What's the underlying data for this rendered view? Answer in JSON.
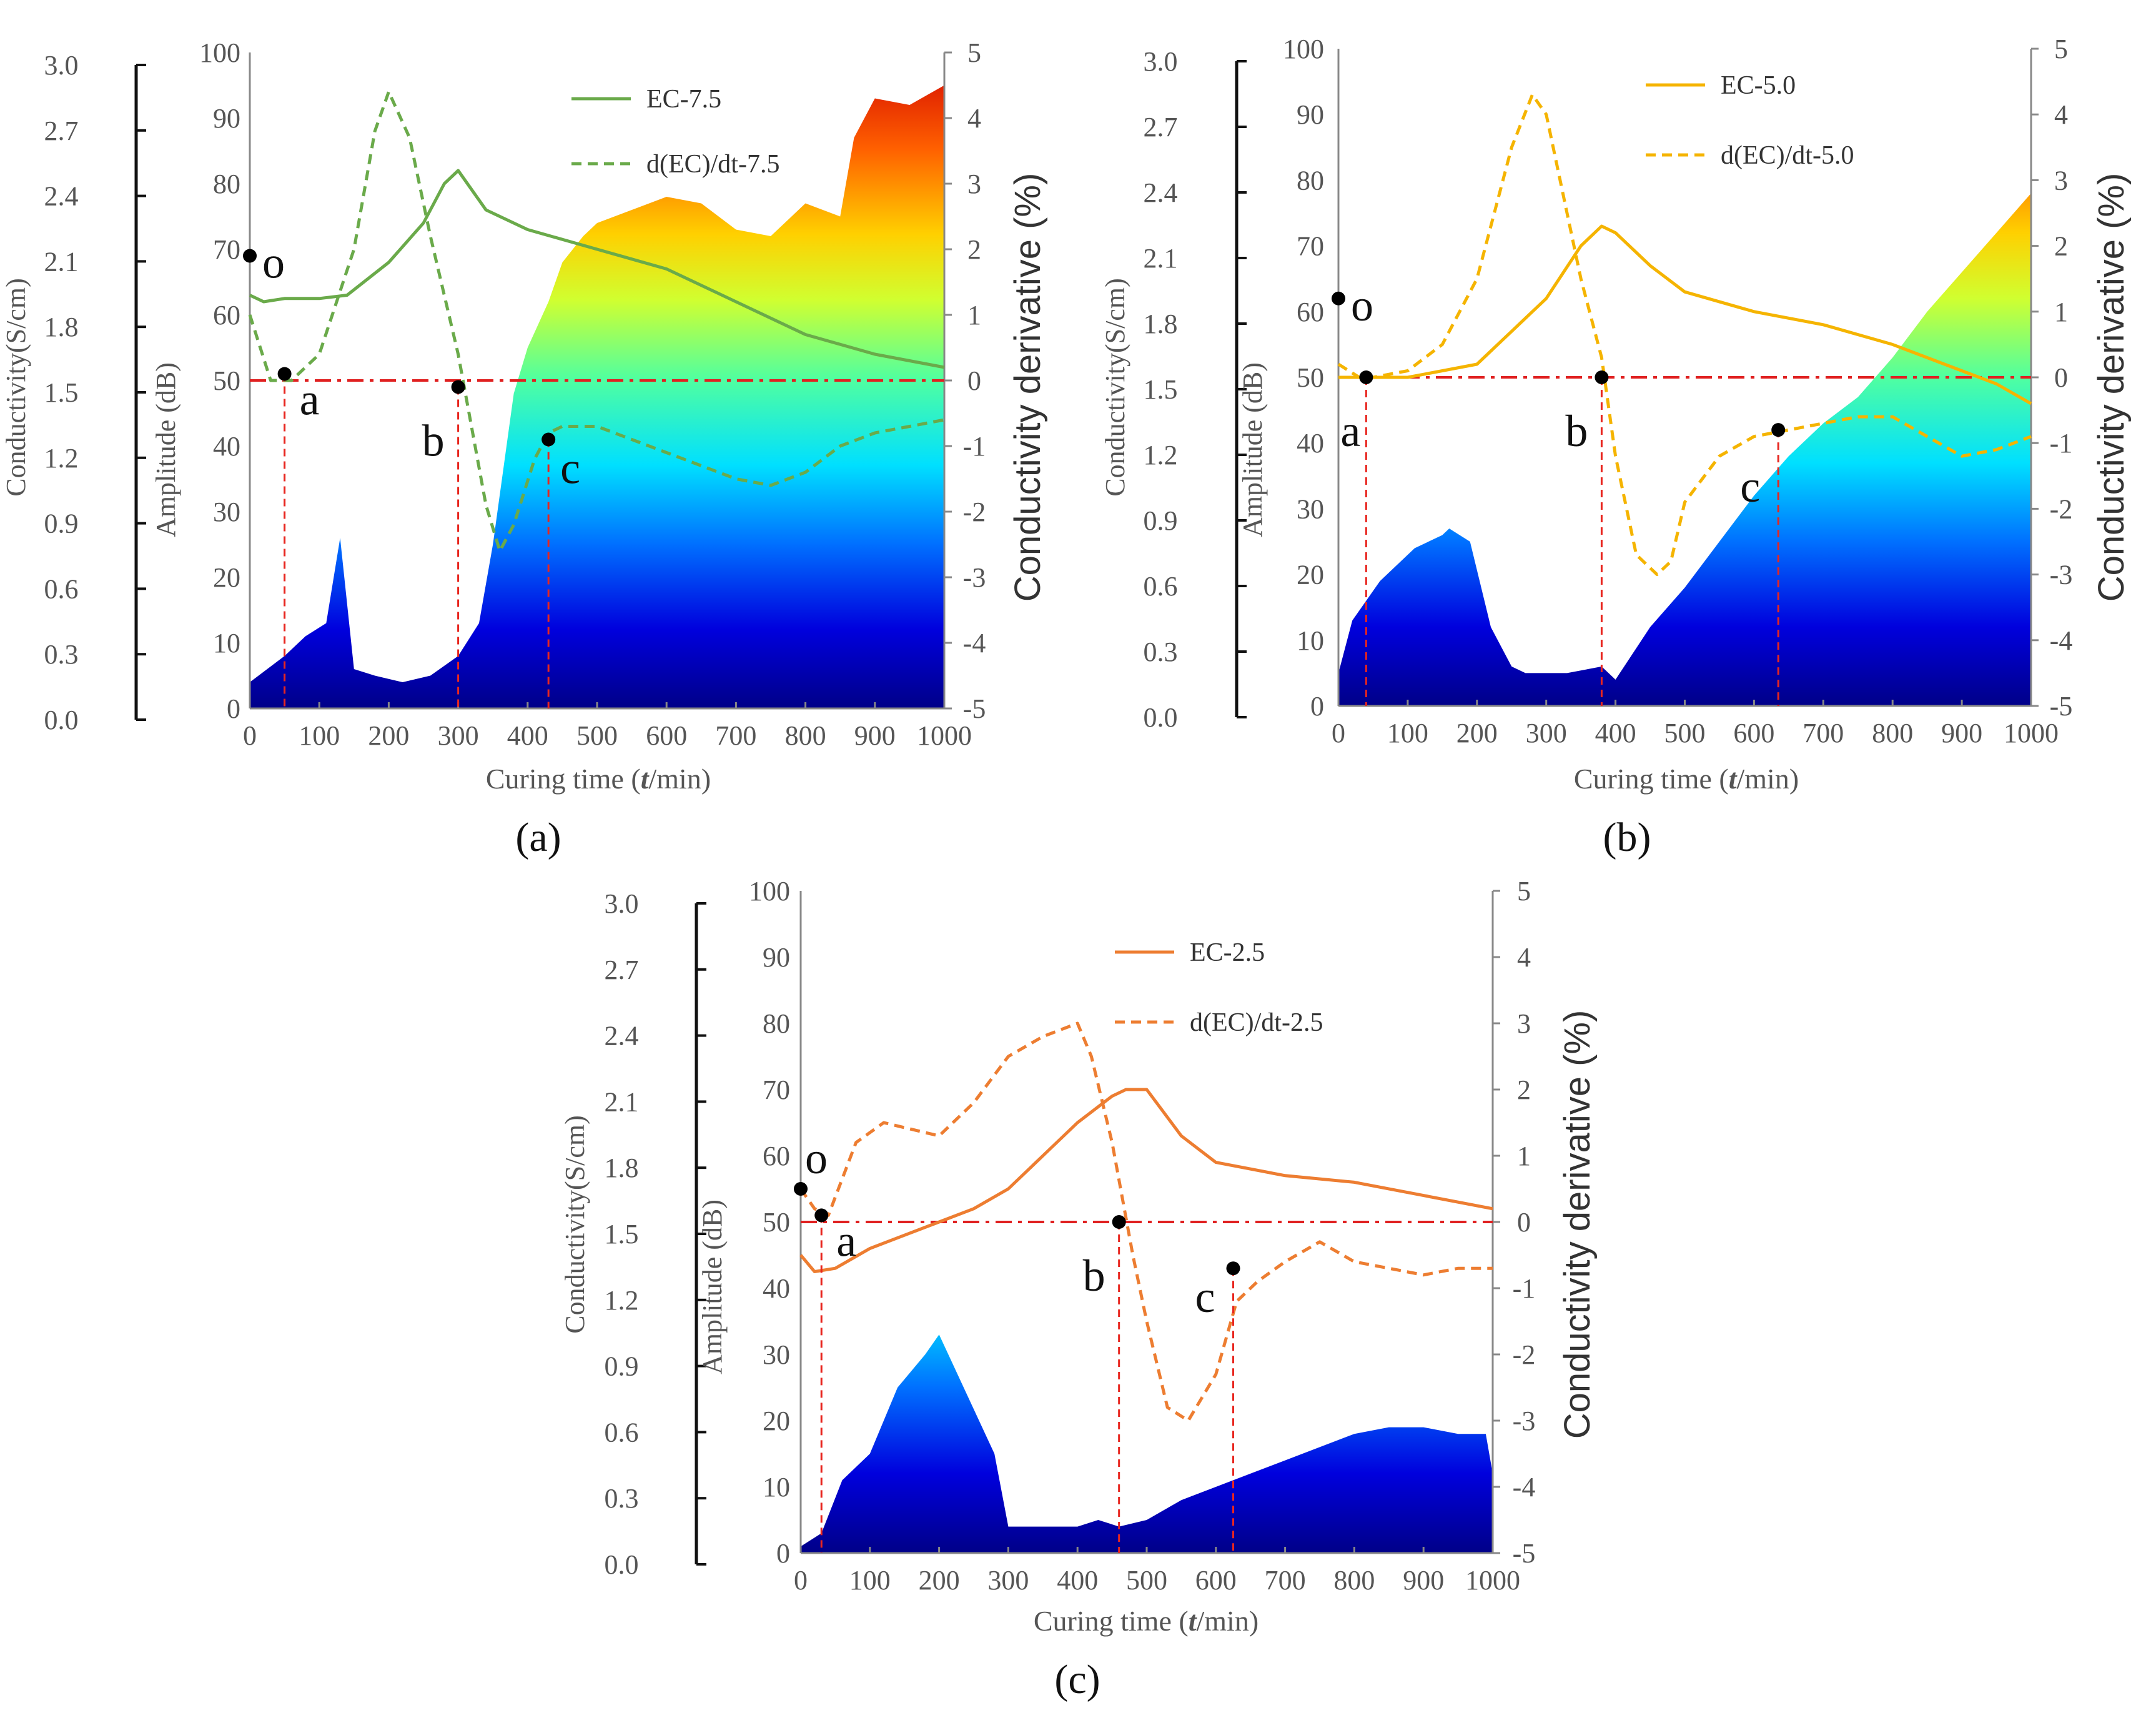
{
  "figure": {
    "x_axis_label_prefix": "Curing time (",
    "x_axis_label_italic": "t",
    "x_axis_label_suffix": "/min)",
    "left_axis_label": "Conductivity(S/cm)",
    "amplitude_label": "Amplitude (dB)",
    "right_axis_label": "Conductivity derivative (%)",
    "conductivity_ticks": [
      "0.0",
      "0.3",
      "0.6",
      "0.9",
      "1.2",
      "1.5",
      "1.8",
      "2.1",
      "2.4",
      "2.7",
      "3.0"
    ],
    "amplitude_ticks": [
      "0",
      "10",
      "20",
      "30",
      "40",
      "50",
      "60",
      "70",
      "80",
      "90",
      "100"
    ],
    "derivative_ticks": [
      "-5",
      "-4",
      "-3",
      "-2",
      "-1",
      "0",
      "1",
      "2",
      "3",
      "4",
      "5"
    ],
    "time_ticks": [
      "0",
      "100",
      "200",
      "300",
      "400",
      "500",
      "600",
      "700",
      "800",
      "900",
      "1000"
    ],
    "colors": {
      "ec_7_5": "#6aaa4a",
      "ec_5_0": "#f5b400",
      "ec_2_5": "#ed7d31",
      "marker_line": "#e8261f",
      "baseline": "#e02020"
    }
  },
  "chart_data": [
    {
      "type": "line",
      "panel_caption": "(a)",
      "x_range": [
        0,
        1000
      ],
      "conductivity_range": [
        0,
        3.0
      ],
      "amplitude_range": [
        0,
        100
      ],
      "derivative_range": [
        -5,
        5
      ],
      "series": [
        {
          "name": "EC-7.5",
          "axis": "amplitude",
          "style": "solid",
          "color": "#6aaa4a",
          "x": [
            0,
            20,
            50,
            100,
            140,
            200,
            250,
            280,
            300,
            340,
            400,
            500,
            600,
            700,
            800,
            900,
            1000
          ],
          "y": [
            63,
            62,
            62.5,
            62.5,
            63,
            68,
            74,
            80,
            82,
            76,
            73,
            70,
            67,
            62,
            57,
            54,
            52
          ]
        },
        {
          "name": "d(EC)/dt-7.5",
          "axis": "derivative",
          "style": "dashed",
          "color": "#6aaa4a",
          "x": [
            0,
            30,
            60,
            100,
            150,
            180,
            200,
            230,
            260,
            300,
            340,
            360,
            380,
            410,
            430,
            450,
            500,
            550,
            600,
            700,
            750,
            800,
            850,
            900,
            950,
            1000
          ],
          "y": [
            1,
            0,
            0,
            0.4,
            2,
            3.8,
            4.4,
            3.7,
            2.2,
            0.4,
            -1.9,
            -2.6,
            -2.2,
            -1.2,
            -0.8,
            -0.7,
            -0.7,
            -0.9,
            -1.1,
            -1.5,
            -1.6,
            -1.4,
            -1,
            -0.8,
            -0.7,
            -0.6
          ]
        },
        {
          "name": "amplitude",
          "axis": "amplitude",
          "style": "area",
          "x": [
            0,
            50,
            80,
            110,
            130,
            150,
            180,
            220,
            260,
            300,
            330,
            350,
            380,
            400,
            430,
            450,
            480,
            500,
            550,
            600,
            650,
            700,
            750,
            800,
            850,
            870,
            900,
            950,
            1000
          ],
          "y": [
            4,
            8,
            11,
            13,
            26,
            6,
            5,
            4,
            5,
            8,
            13,
            25,
            48,
            55,
            62,
            68,
            72,
            74,
            76,
            78,
            77,
            73,
            72,
            77,
            75,
            87,
            93,
            92,
            95
          ]
        }
      ],
      "annotations": [
        {
          "label": "o",
          "x": 0,
          "derivative": 1.9
        },
        {
          "label": "a",
          "x": 50,
          "derivative": 0.1
        },
        {
          "label": "b",
          "x": 300,
          "derivative": -0.1
        },
        {
          "label": "c",
          "x": 430,
          "derivative": -0.9
        }
      ]
    },
    {
      "type": "line",
      "panel_caption": "(b)",
      "x_range": [
        0,
        1000
      ],
      "conductivity_range": [
        0,
        3.0
      ],
      "amplitude_range": [
        0,
        100
      ],
      "derivative_range": [
        -5,
        5
      ],
      "series": [
        {
          "name": "EC-5.0",
          "axis": "amplitude",
          "style": "solid",
          "color": "#f5b400",
          "x": [
            0,
            20,
            50,
            100,
            200,
            300,
            350,
            380,
            400,
            450,
            500,
            600,
            700,
            800,
            900,
            950,
            1000
          ],
          "y": [
            50,
            50,
            50,
            50,
            52,
            62,
            70,
            73,
            72,
            67,
            63,
            60,
            58,
            55,
            51,
            49,
            46
          ]
        },
        {
          "name": "d(EC)/dt-5.0",
          "axis": "derivative",
          "style": "dashed",
          "color": "#f5b400",
          "x": [
            0,
            30,
            50,
            100,
            150,
            200,
            250,
            280,
            300,
            330,
            350,
            380,
            400,
            430,
            460,
            480,
            500,
            550,
            600,
            650,
            700,
            750,
            800,
            850,
            900,
            950,
            1000
          ],
          "y": [
            0.2,
            0,
            0,
            0.1,
            0.5,
            1.5,
            3.5,
            4.3,
            4,
            2.5,
            1.5,
            0.3,
            -1.2,
            -2.7,
            -3,
            -2.8,
            -1.9,
            -1.2,
            -0.9,
            -0.8,
            -0.7,
            -0.6,
            -0.6,
            -0.9,
            -1.2,
            -1.1,
            -0.9
          ]
        },
        {
          "name": "amplitude",
          "axis": "amplitude",
          "style": "area",
          "x": [
            0,
            20,
            60,
            110,
            150,
            160,
            190,
            220,
            250,
            270,
            300,
            330,
            380,
            400,
            450,
            500,
            550,
            600,
            650,
            700,
            750,
            800,
            850,
            900,
            950,
            1000
          ],
          "y": [
            5,
            13,
            19,
            24,
            26,
            27,
            25,
            12,
            6,
            5,
            5,
            5,
            6,
            4,
            12,
            18,
            25,
            32,
            38,
            43,
            47,
            53,
            60,
            66,
            72,
            78
          ]
        }
      ],
      "annotations": [
        {
          "label": "o",
          "x": 0,
          "derivative": 1.2
        },
        {
          "label": "a",
          "x": 40,
          "derivative": 0
        },
        {
          "label": "b",
          "x": 380,
          "derivative": 0
        },
        {
          "label": "c",
          "x": 635,
          "derivative": -0.8
        }
      ]
    },
    {
      "type": "line",
      "panel_caption": "(c)",
      "x_range": [
        0,
        1000
      ],
      "conductivity_range": [
        0,
        3.0
      ],
      "amplitude_range": [
        0,
        100
      ],
      "derivative_range": [
        -5,
        5
      ],
      "series": [
        {
          "name": "EC-2.5",
          "axis": "amplitude",
          "style": "solid",
          "color": "#ed7d31",
          "x": [
            0,
            20,
            50,
            100,
            150,
            200,
            250,
            300,
            350,
            400,
            450,
            470,
            500,
            550,
            600,
            700,
            800,
            900,
            1000
          ],
          "y": [
            45,
            42.5,
            43,
            46,
            48,
            50,
            52,
            55,
            60,
            65,
            69,
            70,
            70,
            63,
            59,
            57,
            56,
            54,
            52
          ]
        },
        {
          "name": "d(EC)/dt-2.5",
          "axis": "derivative",
          "style": "dashed",
          "color": "#ed7d31",
          "x": [
            0,
            20,
            40,
            80,
            120,
            160,
            200,
            250,
            300,
            350,
            400,
            420,
            450,
            480,
            500,
            530,
            560,
            600,
            630,
            660,
            700,
            750,
            800,
            850,
            900,
            950,
            1000
          ],
          "y": [
            0.5,
            0.2,
            0.1,
            1.2,
            1.5,
            1.4,
            1.3,
            1.8,
            2.5,
            2.8,
            3,
            2.5,
            1.2,
            -0.5,
            -1.5,
            -2.8,
            -3,
            -2.3,
            -1.2,
            -0.9,
            -0.6,
            -0.3,
            -0.6,
            -0.7,
            -0.8,
            -0.7,
            -0.7
          ]
        },
        {
          "name": "amplitude",
          "axis": "amplitude",
          "style": "area",
          "x": [
            0,
            30,
            60,
            100,
            140,
            180,
            200,
            240,
            280,
            300,
            350,
            400,
            430,
            460,
            500,
            550,
            600,
            650,
            700,
            750,
            800,
            850,
            900,
            950,
            990,
            1000
          ],
          "y": [
            1,
            3,
            11,
            15,
            25,
            30,
            33,
            24,
            15,
            4,
            4,
            4,
            5,
            4,
            5,
            8,
            10,
            12,
            14,
            16,
            18,
            19,
            19,
            18,
            18,
            12
          ]
        }
      ],
      "annotations": [
        {
          "label": "o",
          "x": 0,
          "derivative": 0.5
        },
        {
          "label": "a",
          "x": 30,
          "derivative": 0.1
        },
        {
          "label": "b",
          "x": 460,
          "derivative": 0
        },
        {
          "label": "c",
          "x": 625,
          "derivative": -0.7
        }
      ]
    }
  ]
}
